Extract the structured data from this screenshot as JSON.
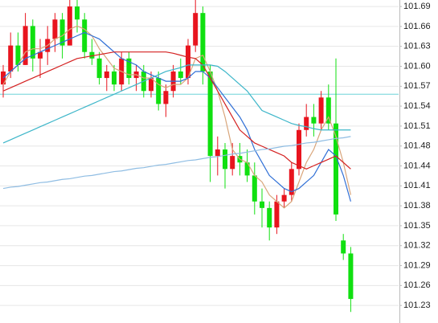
{
  "chart_data": {
    "type": "candlestick",
    "open": [
      101.57,
      101.59,
      101.63,
      101.6,
      101.66,
      101.61,
      101.62,
      101.64,
      101.67,
      101.63,
      101.69,
      101.67,
      101.62,
      101.61,
      101.58,
      101.59,
      101.57,
      101.61,
      101.58,
      101.59,
      101.56,
      101.58,
      101.54,
      101.56,
      101.59,
      101.58,
      101.63,
      101.68,
      101.59,
      101.46,
      101.47,
      101.44,
      101.46,
      101.45,
      101.43,
      101.39,
      101.38,
      101.35,
      101.39,
      101.4,
      101.44,
      101.5,
      101.52,
      101.51,
      101.55,
      101.51,
      101.33,
      101.31
    ],
    "high": [
      101.6,
      101.65,
      101.65,
      101.68,
      101.67,
      101.64,
      101.66,
      101.68,
      101.68,
      101.7,
      101.7,
      101.68,
      101.64,
      101.62,
      101.6,
      101.6,
      101.62,
      101.62,
      101.6,
      101.6,
      101.59,
      101.59,
      101.57,
      101.6,
      101.61,
      101.64,
      101.7,
      101.69,
      101.6,
      101.49,
      101.48,
      101.48,
      101.48,
      101.47,
      101.45,
      101.41,
      101.39,
      101.4,
      101.41,
      101.45,
      101.51,
      101.54,
      101.54,
      101.56,
      101.57,
      101.61,
      101.34,
      101.32
    ],
    "low": [
      101.55,
      101.58,
      101.59,
      101.6,
      101.59,
      101.58,
      101.6,
      101.62,
      101.61,
      101.63,
      101.65,
      101.61,
      101.6,
      101.57,
      101.56,
      101.56,
      101.56,
      101.57,
      101.56,
      101.55,
      101.55,
      101.53,
      101.52,
      101.55,
      101.57,
      101.57,
      101.62,
      101.57,
      101.42,
      101.43,
      101.41,
      101.43,
      101.43,
      101.42,
      101.37,
      101.35,
      101.33,
      101.34,
      101.38,
      101.39,
      101.43,
      101.49,
      101.49,
      101.5,
      101.5,
      101.36,
      101.3,
      101.22
    ],
    "close": [
      101.59,
      101.63,
      101.6,
      101.66,
      101.61,
      101.62,
      101.64,
      101.67,
      101.63,
      101.69,
      101.67,
      101.62,
      101.61,
      101.58,
      101.59,
      101.57,
      101.61,
      101.58,
      101.59,
      101.56,
      101.58,
      101.54,
      101.56,
      101.59,
      101.58,
      101.63,
      101.68,
      101.59,
      101.46,
      101.47,
      101.44,
      101.46,
      101.45,
      101.43,
      101.39,
      101.38,
      101.35,
      101.39,
      101.4,
      101.44,
      101.5,
      101.52,
      101.51,
      101.55,
      101.51,
      101.37,
      101.31,
      101.24
    ],
    "up_color": "#e8141e",
    "down_color": "#10e010",
    "lines": [
      {
        "color": "#d9a57a",
        "values": [
          101.57,
          101.59,
          101.6,
          101.62,
          101.625,
          101.625,
          101.63,
          101.64,
          101.645,
          101.655,
          101.66,
          101.655,
          101.645,
          101.625,
          101.61,
          101.595,
          101.59,
          101.585,
          101.585,
          101.58,
          101.58,
          101.57,
          101.565,
          101.57,
          101.57,
          101.58,
          101.61,
          101.615,
          101.59,
          101.56,
          101.52,
          101.47,
          101.455,
          101.45,
          101.43,
          101.42,
          101.4,
          101.39,
          101.38,
          101.39,
          101.42,
          101.45,
          101.47,
          101.5,
          101.52,
          101.49,
          101.45,
          101.4
        ]
      },
      {
        "color": "#2f6fd6",
        "values": [
          101.58,
          101.59,
          101.6,
          101.61,
          101.615,
          101.62,
          101.625,
          101.63,
          101.635,
          101.64,
          101.645,
          101.65,
          101.645,
          101.64,
          101.63,
          101.62,
          101.61,
          101.605,
          101.6,
          101.59,
          101.585,
          101.58,
          101.575,
          101.575,
          101.575,
          101.58,
          101.59,
          101.59,
          101.58,
          101.565,
          101.55,
          101.535,
          101.52,
          101.5,
          101.47,
          101.45,
          101.43,
          101.42,
          101.41,
          101.405,
          101.41,
          101.42,
          101.43,
          101.45,
          101.47,
          101.46,
          101.43,
          101.39
        ]
      },
      {
        "color": "#d42020",
        "values": [
          101.56,
          101.565,
          101.57,
          101.575,
          101.58,
          101.585,
          101.59,
          101.595,
          101.6,
          101.605,
          101.61,
          101.612,
          101.614,
          101.616,
          101.618,
          101.62,
          101.62,
          101.62,
          101.62,
          101.62,
          101.62,
          101.62,
          101.62,
          101.618,
          101.615,
          101.612,
          101.61,
          101.6,
          101.58,
          101.56,
          101.54,
          101.52,
          101.5,
          101.49,
          101.48,
          101.475,
          101.47,
          101.465,
          101.46,
          101.45,
          101.445,
          101.44,
          101.445,
          101.45,
          101.455,
          101.46,
          101.45,
          101.44
        ]
      },
      {
        "color": "#3db6c9",
        "values": [
          101.48,
          101.485,
          101.49,
          101.495,
          101.5,
          101.505,
          101.51,
          101.515,
          101.52,
          101.525,
          101.53,
          101.535,
          101.54,
          101.545,
          101.55,
          101.555,
          101.56,
          101.565,
          101.57,
          101.575,
          101.58,
          101.585,
          101.59,
          101.593,
          101.596,
          101.6,
          101.6,
          101.6,
          101.6,
          101.598,
          101.59,
          101.58,
          101.57,
          101.56,
          101.545,
          101.53,
          101.525,
          101.52,
          101.515,
          101.51,
          101.507,
          101.505,
          101.502,
          101.5,
          101.5,
          101.5,
          101.5,
          101.5
        ]
      },
      {
        "color": "#8fbde3",
        "values": [
          101.41,
          101.412,
          101.413,
          101.415,
          101.417,
          101.419,
          101.42,
          101.422,
          101.424,
          101.425,
          101.427,
          101.429,
          101.43,
          101.432,
          101.434,
          101.436,
          101.437,
          101.439,
          101.441,
          101.442,
          101.444,
          101.446,
          101.447,
          101.449,
          101.451,
          101.453,
          101.454,
          101.456,
          101.458,
          101.459,
          101.461,
          101.463,
          101.464,
          101.466,
          101.468,
          101.47,
          101.471,
          101.473,
          101.475,
          101.476,
          101.478,
          101.48,
          101.481,
          101.483,
          101.485,
          101.487,
          101.488,
          101.49
        ]
      }
    ],
    "price_line": 101.555,
    "price_line_color": "#6fd3d8",
    "ylim": [
      101.203,
      101.7
    ],
    "yticks": [
      {
        "value": 101.69,
        "label": "101.69"
      },
      {
        "value": 101.6593,
        "label": "101.66"
      },
      {
        "value": 101.6287,
        "label": "101.63"
      },
      {
        "value": 101.598,
        "label": "101.60"
      },
      {
        "value": 101.5673,
        "label": "101.57"
      },
      {
        "value": 101.5367,
        "label": "101.54"
      },
      {
        "value": 101.506,
        "label": "101.51"
      },
      {
        "value": 101.4753,
        "label": "101.48"
      },
      {
        "value": 101.4447,
        "label": "101.44"
      },
      {
        "value": 101.414,
        "label": "101.41"
      },
      {
        "value": 101.3833,
        "label": "101.38"
      },
      {
        "value": 101.3527,
        "label": "101.35"
      },
      {
        "value": 101.322,
        "label": "101.32"
      },
      {
        "value": 101.2913,
        "label": "101.29"
      },
      {
        "value": 101.2607,
        "label": "101.26"
      },
      {
        "value": 101.23,
        "label": "101.23"
      }
    ],
    "grid": true
  }
}
